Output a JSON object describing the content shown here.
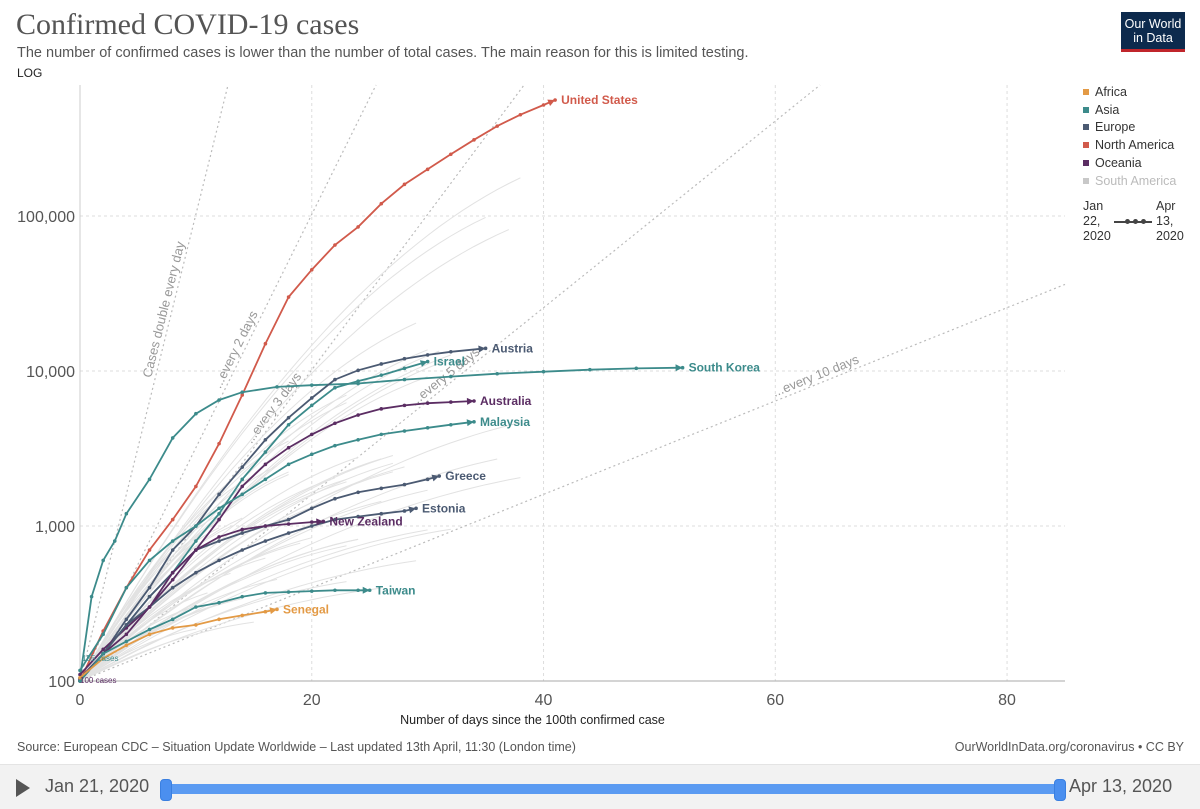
{
  "header": {
    "title": "Confirmed COVID-19 cases",
    "subtitle": "The number of confirmed cases is lower than the number of total cases. The main reason for this is limited testing.",
    "scale_toggle": "LOG",
    "logo_line1": "Our World",
    "logo_line2": "in Data"
  },
  "legend": {
    "items": [
      {
        "label": "Africa",
        "color": "#e39a45"
      },
      {
        "label": "Asia",
        "color": "#3c8b8b"
      },
      {
        "label": "Europe",
        "color": "#4b5a72"
      },
      {
        "label": "North America",
        "color": "#d15a4b"
      },
      {
        "label": "Oceania",
        "color": "#5b2d63"
      },
      {
        "label": "South America",
        "color": "#c8c8c8"
      }
    ],
    "range_start": "Jan 22, 2020",
    "range_end": "Apr 13, 2020"
  },
  "footer": {
    "source": "Source: European CDC – Situation Update Worldwide – Last updated 13th April, 11:30 (London time)",
    "link": "OurWorldInData.org/coronavirus • CC BY"
  },
  "timeline": {
    "start_label": "Jan 21, 2020",
    "end_label": "Apr 13, 2020"
  },
  "chart_data": {
    "type": "line",
    "xlabel": "Number of days since the 100th confirmed case",
    "x_ticks": [
      0,
      20,
      40,
      60,
      80
    ],
    "xlim": [
      0,
      85
    ],
    "y_scale": "log",
    "ylim": [
      100,
      700000
    ],
    "y_ticks": [
      100,
      1000,
      10000,
      100000
    ],
    "y_tick_labels": [
      "100",
      "1,000",
      "10,000",
      "100,000"
    ],
    "grid": true,
    "legend_position": "right",
    "reference_lines": [
      {
        "label": "Cases double every day",
        "doubling_days": 1
      },
      {
        "label": "...every 2 days",
        "doubling_days": 2
      },
      {
        "label": "...every 3 days",
        "doubling_days": 3
      },
      {
        "label": "...every 5 days",
        "doubling_days": 5
      },
      {
        "label": "...every 10 days",
        "doubling_days": 10
      }
    ],
    "start_annotations": [
      "155 cases",
      "100 cases"
    ],
    "series": [
      {
        "name": "United States",
        "region": "North America",
        "x": [
          0,
          2,
          4,
          6,
          8,
          10,
          12,
          14,
          16,
          18,
          20,
          22,
          24,
          26,
          28,
          30,
          32,
          34,
          36,
          38,
          40,
          41
        ],
        "y": [
          100,
          210,
          400,
          700,
          1100,
          1800,
          3400,
          7000,
          15000,
          30000,
          45000,
          65000,
          85000,
          120000,
          160000,
          200000,
          250000,
          310000,
          380000,
          450000,
          520000,
          560000
        ]
      },
      {
        "name": "South Korea",
        "region": "Asia",
        "x": [
          0,
          1,
          2,
          3,
          4,
          6,
          8,
          10,
          12,
          14,
          17,
          20,
          24,
          28,
          32,
          36,
          40,
          44,
          48,
          52
        ],
        "y": [
          104,
          350,
          600,
          800,
          1200,
          2000,
          3700,
          5300,
          6500,
          7300,
          7900,
          8100,
          8300,
          8800,
          9200,
          9600,
          9900,
          10200,
          10400,
          10500
        ]
      },
      {
        "name": "Austria",
        "region": "Europe",
        "x": [
          0,
          2,
          4,
          6,
          8,
          10,
          12,
          14,
          16,
          18,
          20,
          22,
          24,
          26,
          28,
          30,
          32,
          35
        ],
        "y": [
          104,
          150,
          250,
          400,
          700,
          1000,
          1600,
          2400,
          3600,
          5000,
          6700,
          8800,
          10100,
          11100,
          12000,
          12700,
          13300,
          14000
        ]
      },
      {
        "name": "Israel",
        "region": "Asia",
        "x": [
          0,
          2,
          4,
          6,
          8,
          10,
          12,
          14,
          16,
          18,
          20,
          22,
          24,
          26,
          28,
          30
        ],
        "y": [
          100,
          150,
          230,
          350,
          500,
          800,
          1200,
          2000,
          3000,
          4500,
          6000,
          7800,
          8600,
          9400,
          10400,
          11500
        ]
      },
      {
        "name": "Australia",
        "region": "Oceania",
        "x": [
          0,
          2,
          4,
          6,
          8,
          10,
          12,
          14,
          16,
          18,
          20,
          22,
          24,
          26,
          28,
          30,
          32,
          34
        ],
        "y": [
          110,
          160,
          220,
          300,
          450,
          700,
          1100,
          1800,
          2500,
          3200,
          3900,
          4600,
          5200,
          5700,
          6000,
          6200,
          6300,
          6400
        ]
      },
      {
        "name": "Malaysia",
        "region": "Asia",
        "x": [
          0,
          2,
          4,
          6,
          8,
          10,
          12,
          14,
          16,
          18,
          20,
          22,
          24,
          26,
          28,
          30,
          32,
          34
        ],
        "y": [
          117,
          200,
          400,
          600,
          800,
          1000,
          1300,
          1600,
          2000,
          2500,
          2900,
          3300,
          3600,
          3900,
          4100,
          4300,
          4500,
          4700
        ]
      },
      {
        "name": "Greece",
        "region": "Europe",
        "x": [
          0,
          2,
          4,
          6,
          8,
          10,
          12,
          14,
          16,
          18,
          20,
          22,
          24,
          26,
          28,
          30,
          31
        ],
        "y": [
          100,
          150,
          230,
          350,
          500,
          700,
          800,
          900,
          1000,
          1100,
          1300,
          1500,
          1650,
          1750,
          1850,
          2000,
          2100
        ]
      },
      {
        "name": "Estonia",
        "region": "Europe",
        "x": [
          0,
          2,
          4,
          6,
          8,
          10,
          12,
          14,
          16,
          18,
          20,
          22,
          24,
          26,
          28,
          29
        ],
        "y": [
          100,
          150,
          230,
          300,
          400,
          500,
          600,
          700,
          800,
          900,
          1000,
          1100,
          1150,
          1200,
          1250,
          1300
        ]
      },
      {
        "name": "New Zealand",
        "region": "Oceania",
        "x": [
          0,
          2,
          4,
          6,
          8,
          10,
          12,
          14,
          16,
          18,
          20,
          21
        ],
        "y": [
          102,
          150,
          200,
          300,
          500,
          700,
          850,
          950,
          1000,
          1030,
          1060,
          1070
        ]
      },
      {
        "name": "Taiwan",
        "region": "Asia",
        "x": [
          0,
          2,
          4,
          6,
          8,
          10,
          12,
          14,
          16,
          18,
          20,
          22,
          24,
          25
        ],
        "y": [
          100,
          150,
          180,
          215,
          250,
          300,
          320,
          350,
          370,
          375,
          380,
          385,
          385,
          385
        ]
      },
      {
        "name": "Senegal",
        "region": "Africa",
        "x": [
          0,
          2,
          4,
          6,
          8,
          10,
          12,
          14,
          16,
          17
        ],
        "y": [
          105,
          140,
          170,
          200,
          220,
          230,
          250,
          265,
          280,
          290
        ]
      }
    ]
  }
}
